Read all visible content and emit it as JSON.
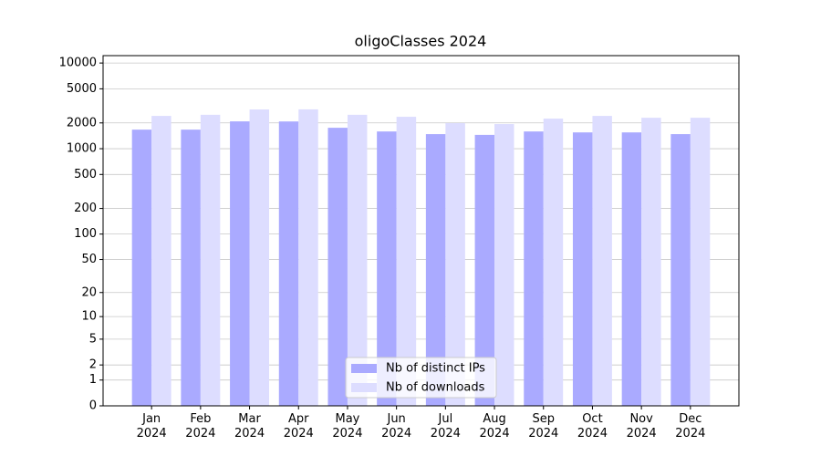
{
  "chart_data": {
    "type": "bar",
    "title": "oligoClasses 2024",
    "categories": [
      "Jan\n2024",
      "Feb\n2024",
      "Mar\n2024",
      "Apr\n2024",
      "May\n2024",
      "Jun\n2024",
      "Jul\n2024",
      "Aug\n2024",
      "Sep\n2024",
      "Oct\n2024",
      "Nov\n2024",
      "Dec\n2024"
    ],
    "series": [
      {
        "name": "Nb of distinct IPs",
        "color": "#aaaaff",
        "values": [
          1670,
          1670,
          2085,
          2080,
          1755,
          1590,
          1480,
          1450,
          1590,
          1550,
          1550,
          1480
        ]
      },
      {
        "name": "Nb of downloads",
        "color": "#ddddff",
        "values": [
          2415,
          2490,
          2870,
          2880,
          2490,
          2360,
          1990,
          1940,
          2245,
          2415,
          2300,
          2300
        ]
      }
    ],
    "scale": "log1p",
    "ylim": [
      0,
      12200
    ],
    "yticks": [
      0,
      1,
      2,
      5,
      10,
      20,
      50,
      100,
      200,
      500,
      1000,
      2000,
      5000,
      10000
    ],
    "grid": true,
    "legend": "lower center"
  }
}
